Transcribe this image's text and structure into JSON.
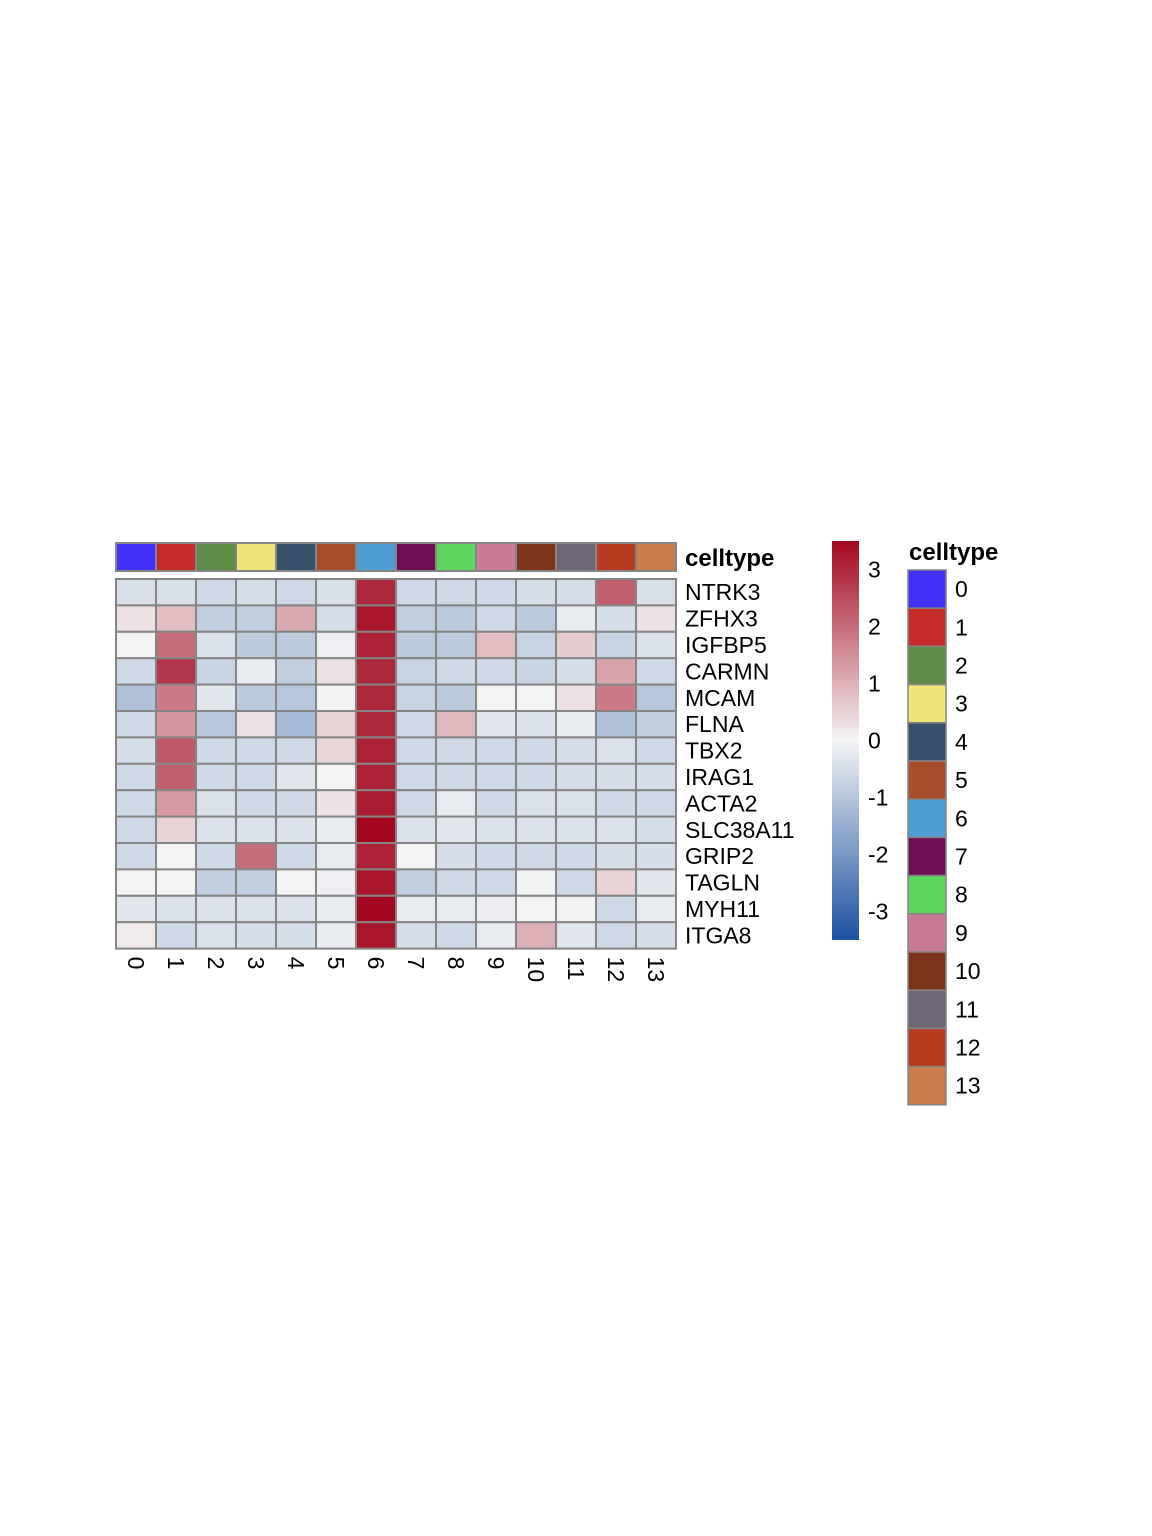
{
  "chart_data": {
    "type": "heatmap",
    "columns": [
      "0",
      "1",
      "2",
      "3",
      "4",
      "5",
      "6",
      "7",
      "8",
      "9",
      "10",
      "11",
      "12",
      "13"
    ],
    "rows": [
      "NTRK3",
      "ZFHX3",
      "IGFBP5",
      "CARMN",
      "MCAM",
      "FLNA",
      "TBX2",
      "IRAG1",
      "ACTA2",
      "SLC38A11",
      "GRIP2",
      "TAGLN",
      "MYH11",
      "ITGA8"
    ],
    "values": [
      [
        -0.45,
        -0.45,
        -0.6,
        -0.5,
        -0.6,
        -0.45,
        3.0,
        -0.6,
        -0.6,
        -0.6,
        -0.5,
        -0.5,
        2.2,
        -0.45
      ],
      [
        0.3,
        0.8,
        -0.8,
        -0.8,
        1.1,
        -0.5,
        3.3,
        -0.8,
        -0.9,
        -0.6,
        -0.9,
        -0.2,
        -0.5,
        0.3
      ],
      [
        0.0,
        2.0,
        -0.4,
        -0.9,
        -0.9,
        -0.1,
        3.1,
        -0.9,
        -0.9,
        0.8,
        -0.7,
        0.6,
        -0.7,
        -0.4
      ],
      [
        -0.6,
        2.8,
        -0.7,
        -0.2,
        -0.8,
        0.3,
        3.0,
        -0.7,
        -0.6,
        -0.6,
        -0.7,
        -0.5,
        1.2,
        -0.6
      ],
      [
        -1.1,
        1.8,
        -0.3,
        -0.9,
        -1.0,
        0.05,
        3.0,
        -0.7,
        -0.9,
        0.0,
        0.0,
        0.3,
        1.8,
        -1.0
      ],
      [
        -0.6,
        1.4,
        -1.0,
        0.3,
        -1.2,
        0.5,
        3.0,
        -0.6,
        0.9,
        -0.3,
        -0.4,
        -0.2,
        -1.1,
        -0.8
      ],
      [
        -0.5,
        2.3,
        -0.6,
        -0.6,
        -0.6,
        0.45,
        3.1,
        -0.6,
        -0.6,
        -0.6,
        -0.6,
        -0.5,
        -0.4,
        -0.6
      ],
      [
        -0.6,
        2.2,
        -0.6,
        -0.6,
        -0.3,
        0.0,
        3.1,
        -0.6,
        -0.6,
        -0.6,
        -0.6,
        -0.5,
        -0.5,
        -0.5
      ],
      [
        -0.6,
        1.3,
        -0.4,
        -0.6,
        -0.6,
        0.25,
        3.2,
        -0.6,
        -0.2,
        -0.6,
        -0.4,
        -0.4,
        -0.6,
        -0.6
      ],
      [
        -0.6,
        0.5,
        -0.4,
        -0.4,
        -0.4,
        -0.2,
        3.5,
        -0.4,
        -0.3,
        -0.4,
        -0.4,
        -0.4,
        -0.4,
        -0.5
      ],
      [
        -0.6,
        0.0,
        -0.6,
        2.0,
        -0.6,
        -0.2,
        3.1,
        0.0,
        -0.5,
        -0.6,
        -0.6,
        -0.6,
        -0.5,
        -0.5
      ],
      [
        0.0,
        0.0,
        -0.8,
        -0.8,
        0.0,
        -0.1,
        3.3,
        -0.8,
        -0.6,
        -0.6,
        -0.05,
        -0.6,
        0.5,
        -0.3
      ],
      [
        -0.3,
        -0.4,
        -0.4,
        -0.4,
        -0.4,
        -0.2,
        3.5,
        -0.2,
        -0.2,
        -0.15,
        0.0,
        0.05,
        -0.6,
        -0.2
      ],
      [
        0.15,
        -0.6,
        -0.4,
        -0.5,
        -0.5,
        -0.2,
        3.3,
        -0.5,
        -0.6,
        -0.2,
        1.0,
        -0.3,
        -0.6,
        -0.5
      ]
    ],
    "annotation_title": "celltype",
    "annotation_colors": [
      "#4231fb",
      "#c52b29",
      "#5e8c47",
      "#eee477",
      "#365169",
      "#a84e2d",
      "#4d9fd6",
      "#6d0f52",
      "#5cd65b",
      "#c97b94",
      "#7c3419",
      "#6e6677",
      "#ba3a21",
      "#c97d4d"
    ],
    "legend_title": "celltype",
    "legend_labels": [
      "0",
      "1",
      "2",
      "3",
      "4",
      "5",
      "6",
      "7",
      "8",
      "9",
      "10",
      "11",
      "12",
      "13"
    ],
    "colorbar": {
      "min": -3.5,
      "max": 3.5,
      "ticks": [
        "3",
        "2",
        "1",
        "0",
        "-1",
        "-2",
        "-3"
      ],
      "tick_values": [
        3,
        2,
        1,
        0,
        -1,
        -2,
        -3
      ],
      "low_color": "#1a52a0",
      "mid_color": "#f4f4f4",
      "high_color": "#a4071f"
    },
    "grid": true,
    "cell_border_color": "#858585"
  }
}
